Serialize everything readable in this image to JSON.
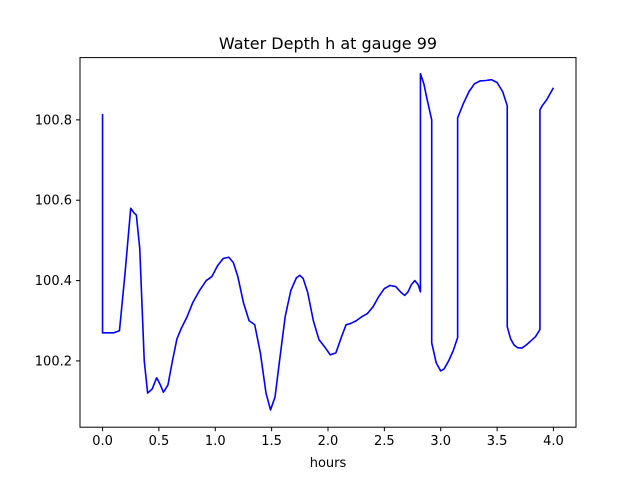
{
  "chart_data": {
    "type": "line",
    "title": "Water Depth h at gauge 99",
    "xlabel": "hours",
    "ylabel": "",
    "xlim": [
      -0.2,
      4.2
    ],
    "ylim": [
      100.035,
      100.955
    ],
    "xticks": [
      0.0,
      0.5,
      1.0,
      1.5,
      2.0,
      2.5,
      3.0,
      3.5,
      4.0
    ],
    "xtick_labels": [
      "0.0",
      "0.5",
      "1.0",
      "1.5",
      "2.0",
      "2.5",
      "3.0",
      "3.5",
      "4.0"
    ],
    "yticks": [
      100.2,
      100.4,
      100.6,
      100.8
    ],
    "ytick_labels": [
      "100.2",
      "100.4",
      "100.6",
      "100.8"
    ],
    "grid": false,
    "legend": "none",
    "series": [
      {
        "color": "#0000ff",
        "x": [
          0.0,
          0.0,
          0.1,
          0.15,
          0.2,
          0.25,
          0.28,
          0.3,
          0.33,
          0.37,
          0.4,
          0.44,
          0.48,
          0.51,
          0.54,
          0.58,
          0.62,
          0.66,
          0.7,
          0.75,
          0.8,
          0.86,
          0.92,
          0.97,
          1.02,
          1.07,
          1.12,
          1.16,
          1.2,
          1.25,
          1.3,
          1.35,
          1.4,
          1.45,
          1.49,
          1.53,
          1.57,
          1.62,
          1.67,
          1.72,
          1.75,
          1.78,
          1.82,
          1.87,
          1.92,
          1.97,
          2.02,
          2.07,
          2.12,
          2.16,
          2.2,
          2.25,
          2.3,
          2.35,
          2.4,
          2.45,
          2.5,
          2.55,
          2.6,
          2.65,
          2.68,
          2.71,
          2.74,
          2.77,
          2.8,
          2.82,
          2.82,
          2.85,
          2.88,
          2.92,
          2.92,
          2.96,
          3.0,
          3.03,
          3.07,
          3.11,
          3.15,
          3.15,
          3.2,
          3.25,
          3.3,
          3.35,
          3.4,
          3.45,
          3.5,
          3.55,
          3.59,
          3.59,
          3.62,
          3.65,
          3.68,
          3.72,
          3.76,
          3.8,
          3.84,
          3.88,
          3.88,
          3.9,
          3.94,
          3.98,
          4.0
        ],
        "y": [
          100.815,
          100.27,
          100.27,
          100.275,
          100.42,
          100.58,
          100.568,
          100.563,
          100.48,
          100.2,
          100.12,
          100.13,
          100.158,
          100.142,
          100.122,
          100.14,
          100.2,
          100.255,
          100.282,
          100.31,
          100.345,
          100.375,
          100.4,
          100.41,
          100.437,
          100.455,
          100.458,
          100.445,
          100.41,
          100.345,
          100.3,
          100.29,
          100.22,
          100.12,
          100.078,
          100.11,
          100.2,
          100.31,
          100.375,
          100.407,
          100.413,
          100.405,
          100.37,
          100.3,
          100.253,
          100.235,
          100.215,
          100.22,
          100.26,
          100.29,
          100.293,
          100.3,
          100.31,
          100.318,
          100.335,
          100.36,
          100.38,
          100.388,
          100.385,
          100.37,
          100.363,
          100.372,
          100.39,
          100.4,
          100.39,
          100.372,
          100.915,
          100.89,
          100.85,
          100.8,
          100.245,
          100.195,
          100.175,
          100.18,
          100.2,
          100.225,
          100.258,
          100.805,
          100.84,
          100.87,
          100.89,
          100.897,
          100.898,
          100.9,
          100.893,
          100.87,
          100.835,
          100.285,
          100.255,
          100.24,
          100.233,
          100.232,
          100.24,
          100.25,
          100.26,
          100.278,
          100.825,
          100.835,
          100.85,
          100.87,
          100.88
        ]
      }
    ]
  }
}
